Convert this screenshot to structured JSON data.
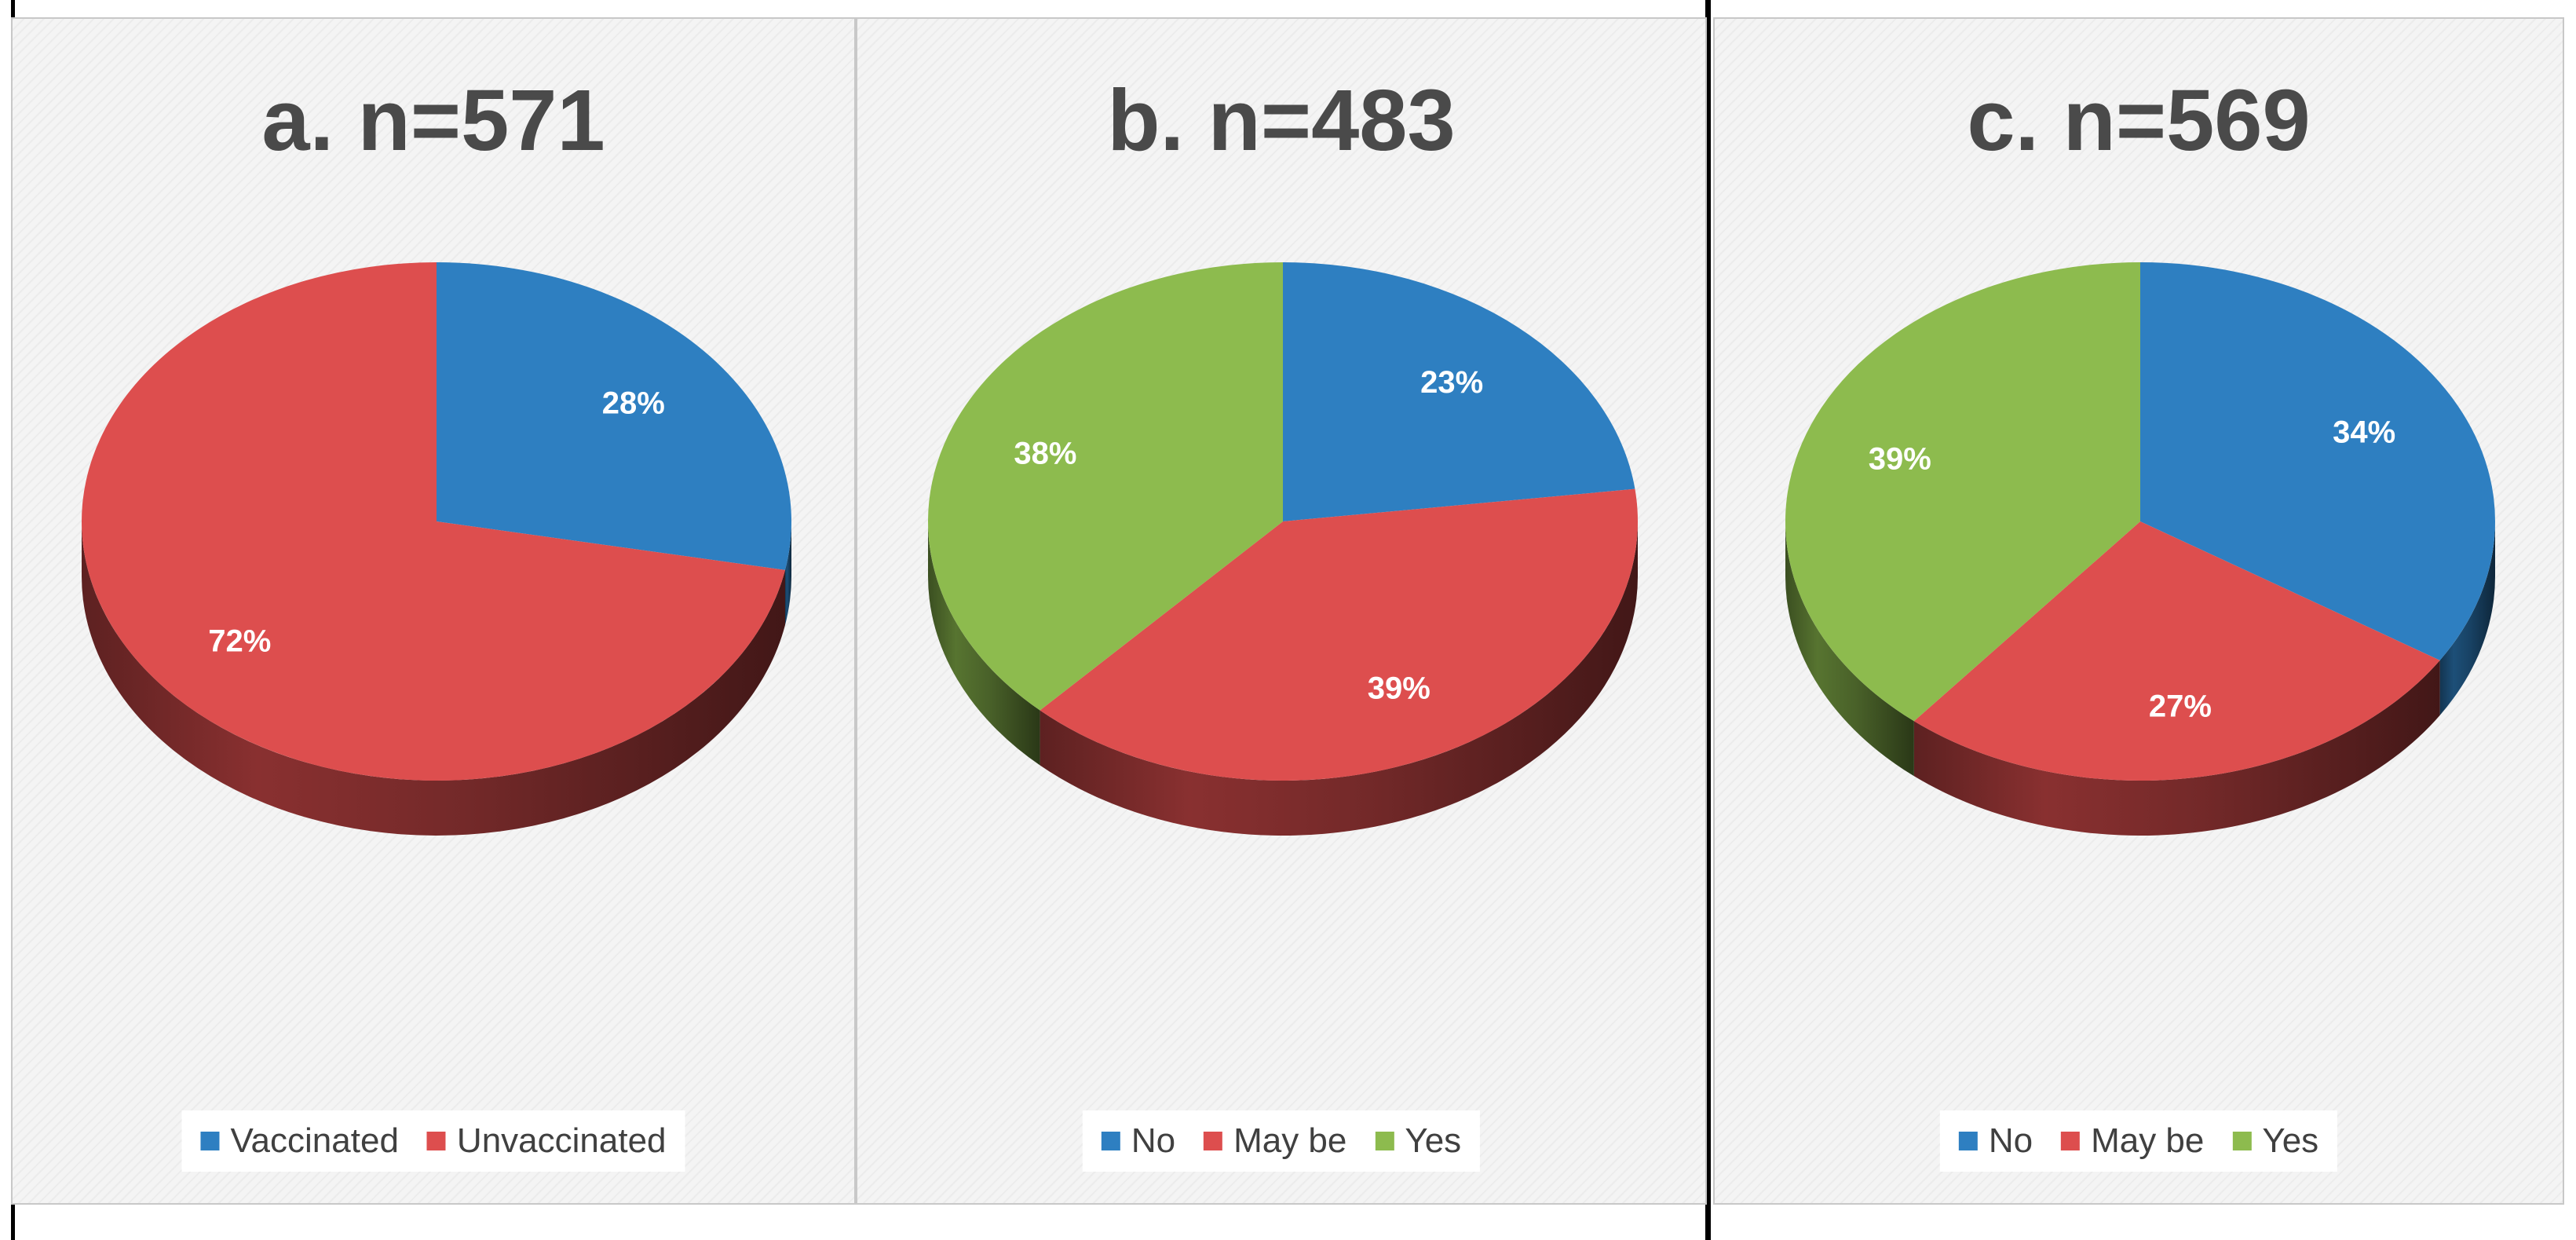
{
  "chart_data": [
    {
      "type": "pie",
      "title": "a. n=571",
      "categories": [
        "Vaccinated",
        "Unvaccinated"
      ],
      "values": [
        28,
        72
      ],
      "labels": [
        "28%",
        "72%"
      ],
      "colors": [
        "#2e7fc1",
        "#dd4e4e"
      ],
      "legend": "bottom"
    },
    {
      "type": "pie",
      "title": "b. n=483",
      "categories": [
        "No",
        "May be",
        "Yes"
      ],
      "values": [
        23,
        39,
        38
      ],
      "labels": [
        "23%",
        "39%",
        "38%"
      ],
      "colors": [
        "#2e7fc1",
        "#dd4e4e",
        "#8dbb4e"
      ],
      "legend": "bottom"
    },
    {
      "type": "pie",
      "title": "c. n=569",
      "categories": [
        "No",
        "May be",
        "Yes"
      ],
      "values": [
        34,
        27,
        39
      ],
      "labels": [
        "34%",
        "27%",
        "39%"
      ],
      "colors": [
        "#2e7fc1",
        "#dd4e4e",
        "#8dbb4e"
      ],
      "legend": "bottom"
    }
  ]
}
